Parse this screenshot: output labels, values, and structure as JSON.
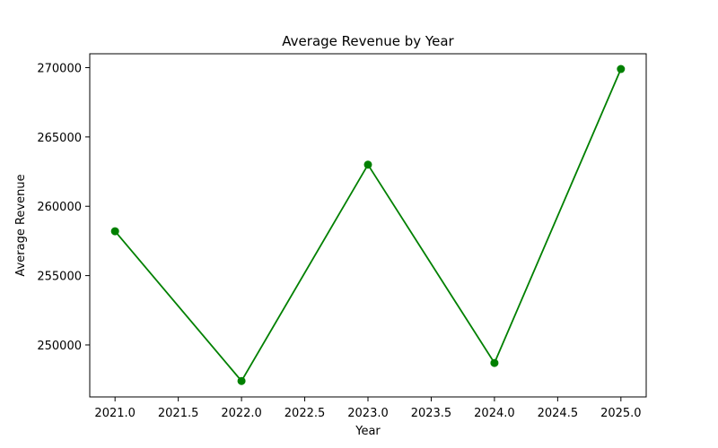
{
  "chart_data": {
    "type": "line",
    "title": "Average Revenue by Year",
    "xlabel": "Year",
    "ylabel": "Average Revenue",
    "x": [
      2021,
      2022,
      2023,
      2024,
      2025
    ],
    "series": [
      {
        "values": [
          258200,
          247400,
          263000,
          248700,
          269900
        ]
      }
    ],
    "xlim": [
      2020.8,
      2025.2
    ],
    "ylim": [
      246250,
      271000
    ],
    "xticks": [
      "2021.0",
      "2021.5",
      "2022.0",
      "2022.5",
      "2023.0",
      "2023.5",
      "2024.0",
      "2024.5",
      "2025.0"
    ],
    "yticks": [
      "250000",
      "255000",
      "260000",
      "265000",
      "270000"
    ],
    "grid": false,
    "markers": true,
    "color": "#008000"
  }
}
